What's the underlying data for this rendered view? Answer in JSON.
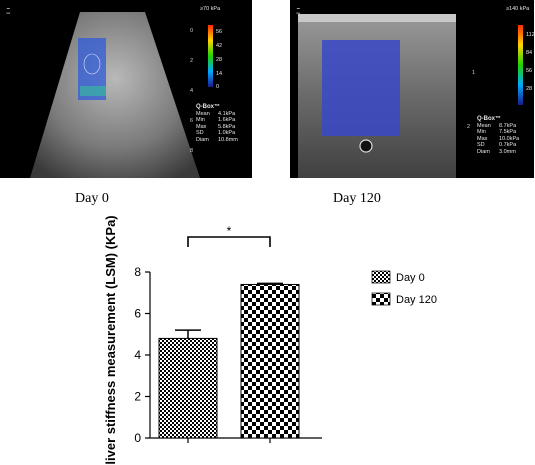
{
  "panels": {
    "left": {
      "scale_max": "≥70 kPa",
      "scale_ticks": [
        "56",
        "42",
        "28",
        "14",
        "0"
      ],
      "depth_ticks": [
        "0",
        "2",
        "4",
        "6",
        "8"
      ],
      "qbox_title": "Q-Box™",
      "qbox_rows": [
        {
          "k": "Mean",
          "v": "4.1kPa"
        },
        {
          "k": "Min",
          "v": "1.6kPa"
        },
        {
          "k": "Max",
          "v": "5.8kPa"
        },
        {
          "k": "SD",
          "v": "1.0kPa"
        },
        {
          "k": "Diam",
          "v": "10.8mm"
        }
      ],
      "caption": "Day 0"
    },
    "right": {
      "scale_max": "≥140 kPa",
      "scale_ticks": [
        "112",
        "84",
        "56",
        "28"
      ],
      "depth_ticks": [
        "1",
        "2"
      ],
      "qbox_title": "Q-Box™",
      "qbox_rows": [
        {
          "k": "Mean",
          "v": "8.7kPa"
        },
        {
          "k": "Min",
          "v": "7.5kPa"
        },
        {
          "k": "Max",
          "v": "10.0kPa"
        },
        {
          "k": "SD",
          "v": "0.7kPa"
        },
        {
          "k": "Diam",
          "v": "3.0mm"
        }
      ],
      "caption": "Day 120"
    }
  },
  "colors": {
    "bar_fill": "#ffffff",
    "checker": "#000000",
    "elasto_blue": "#3a49c8",
    "us_background": "#000000"
  },
  "chart_data": {
    "type": "bar",
    "categories": [
      "Day 0",
      "Day 120"
    ],
    "values": [
      4.8,
      7.4
    ],
    "errors": [
      0.4,
      0.05
    ],
    "ylabel": "liver stiffness measurement (LSM) (KPa)",
    "ylim": [
      0,
      8
    ],
    "yticks": [
      0,
      2,
      4,
      6,
      8
    ],
    "significance": "*",
    "legend": [
      "Day 0",
      "Day 120"
    ],
    "legend_position": "right",
    "grid": false
  }
}
